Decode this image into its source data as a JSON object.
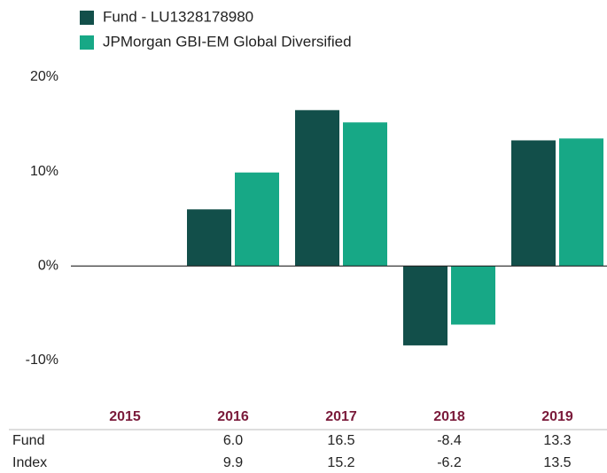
{
  "chart_data": {
    "type": "bar",
    "categories": [
      "2015",
      "2016",
      "2017",
      "2018",
      "2019"
    ],
    "series": [
      {
        "name": "Fund - LU1328178980",
        "short_name": "Fund",
        "color": "#124f4a",
        "values": [
          null,
          6.0,
          16.5,
          -8.4,
          13.3
        ],
        "value_labels": [
          null,
          "6.0",
          "16.5",
          "-8.4",
          "13.3"
        ]
      },
      {
        "name": "JPMorgan GBI-EM Global Diversified",
        "short_name": "Index",
        "color": "#17a886",
        "values": [
          null,
          9.9,
          15.2,
          -6.2,
          13.5
        ],
        "value_labels": [
          null,
          "9.9",
          "15.2",
          "-6.2",
          "13.5"
        ]
      }
    ],
    "ylim": [
      -13,
      20
    ],
    "yticks": [
      {
        "value": 20,
        "label": "20%"
      },
      {
        "value": 10,
        "label": "10%"
      },
      {
        "value": 0,
        "label": "0%"
      },
      {
        "value": -10,
        "label": "-10%"
      }
    ],
    "grid": false,
    "legend": "top-left"
  }
}
